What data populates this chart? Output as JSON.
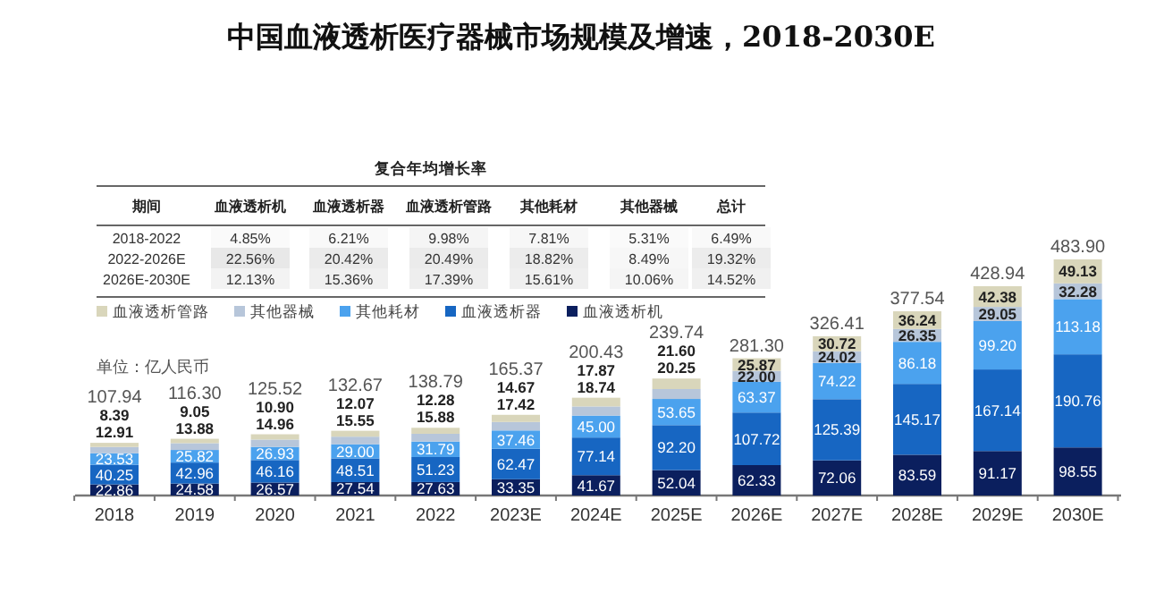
{
  "chart_data": [
    {
      "type": "bar",
      "stacked": true,
      "legend": "top left",
      "title": "中国血液透析医疗器械市场规模及增速，2018-2030E",
      "annotations": [
        "单位：亿人民币"
      ],
      "categories": [
        "2018",
        "2019",
        "2020",
        "2021",
        "2022",
        "2023E",
        "2024E",
        "2025E",
        "2026E",
        "2027E",
        "2028E",
        "2029E",
        "2030E"
      ],
      "series": [
        {
          "name": "血液透析机",
          "color": "#0b1f5e",
          "values": [
            22.86,
            24.58,
            26.57,
            27.54,
            27.63,
            33.35,
            41.67,
            52.04,
            62.33,
            72.06,
            83.59,
            91.17,
            98.55
          ],
          "value_labels": [
            "22.86",
            "24.58",
            "26.57",
            "27.54",
            "27.63",
            "33.35",
            "41.67",
            "52.04",
            "62.33",
            "72.06",
            "83.59",
            "91.17",
            "98.55"
          ]
        },
        {
          "name": "血液透析器",
          "color": "#1766c2",
          "values": [
            40.25,
            42.96,
            46.16,
            48.51,
            51.23,
            62.47,
            77.14,
            92.2,
            107.72,
            125.39,
            145.17,
            167.14,
            190.76
          ],
          "value_labels": [
            "40.25",
            "42.96",
            "46.16",
            "48.51",
            "51.23",
            "62.47",
            "77.14",
            "92.20",
            "107.72",
            "125.39",
            "145.17",
            "167.14",
            "190.76"
          ]
        },
        {
          "name": "其他耗材",
          "color": "#4ba2ee",
          "values": [
            23.53,
            25.82,
            26.93,
            29.0,
            31.79,
            37.46,
            45.0,
            53.65,
            63.37,
            74.22,
            86.18,
            99.2,
            113.18
          ],
          "value_labels": [
            "23.53",
            "25.82",
            "26.93",
            "29.00",
            "31.79",
            "37.46",
            "45.00",
            "53.65",
            "63.37",
            "74.22",
            "86.18",
            "99.20",
            "113.18"
          ]
        },
        {
          "name": "其他器械",
          "color": "#b7c6da",
          "values": [
            12.91,
            13.88,
            14.96,
            15.55,
            15.88,
            17.42,
            18.74,
            20.25,
            22.0,
            24.02,
            26.35,
            29.05,
            32.28
          ],
          "value_labels": [
            "12.91",
            "13.88",
            "14.96",
            "15.55",
            "15.88",
            "17.42",
            "18.74",
            "20.25",
            "22.00",
            "24.02",
            "26.35",
            "29.05",
            "32.28"
          ]
        },
        {
          "name": "血液透析管路",
          "color": "#d9d6bb",
          "values": [
            8.39,
            9.05,
            10.9,
            12.07,
            12.28,
            14.67,
            17.87,
            21.6,
            25.87,
            30.72,
            36.24,
            42.38,
            49.13
          ],
          "value_labels": [
            "8.39",
            "9.05",
            "10.90",
            "12.07",
            "12.28",
            "14.67",
            "17.87",
            "21.60",
            "25.87",
            "30.72",
            "36.24",
            "42.38",
            "49.13"
          ]
        }
      ],
      "totals": [
        "107.94",
        "116.30",
        "125.52",
        "132.67",
        "138.79",
        "165.37",
        "200.43",
        "239.74",
        "281.30",
        "326.41",
        "377.54",
        "428.94",
        "483.90"
      ]
    },
    {
      "type": "heatmap",
      "title": "复合年均增长率",
      "ylabel": "期间",
      "categories": [
        "血液透析机",
        "血液透析器",
        "血液透析管路",
        "其他耗材",
        "其他器械",
        "总计"
      ],
      "y_categories": [
        "2018-2022",
        "2022-2026E",
        "2026E-2030E"
      ],
      "cells": [
        [
          4.85,
          6.21,
          9.98,
          7.81,
          5.31,
          6.49
        ],
        [
          22.56,
          20.42,
          20.49,
          18.82,
          8.49,
          19.32
        ],
        [
          12.13,
          15.36,
          17.39,
          15.61,
          10.06,
          14.52
        ]
      ],
      "cell_labels": [
        [
          "4.85%",
          "6.21%",
          "9.98%",
          "7.81%",
          "5.31%",
          "6.49%"
        ],
        [
          "22.56%",
          "20.42%",
          "20.49%",
          "18.82%",
          "8.49%",
          "19.32%"
        ],
        [
          "12.13%",
          "15.36%",
          "17.39%",
          "15.61%",
          "10.06%",
          "14.52%"
        ]
      ]
    }
  ]
}
